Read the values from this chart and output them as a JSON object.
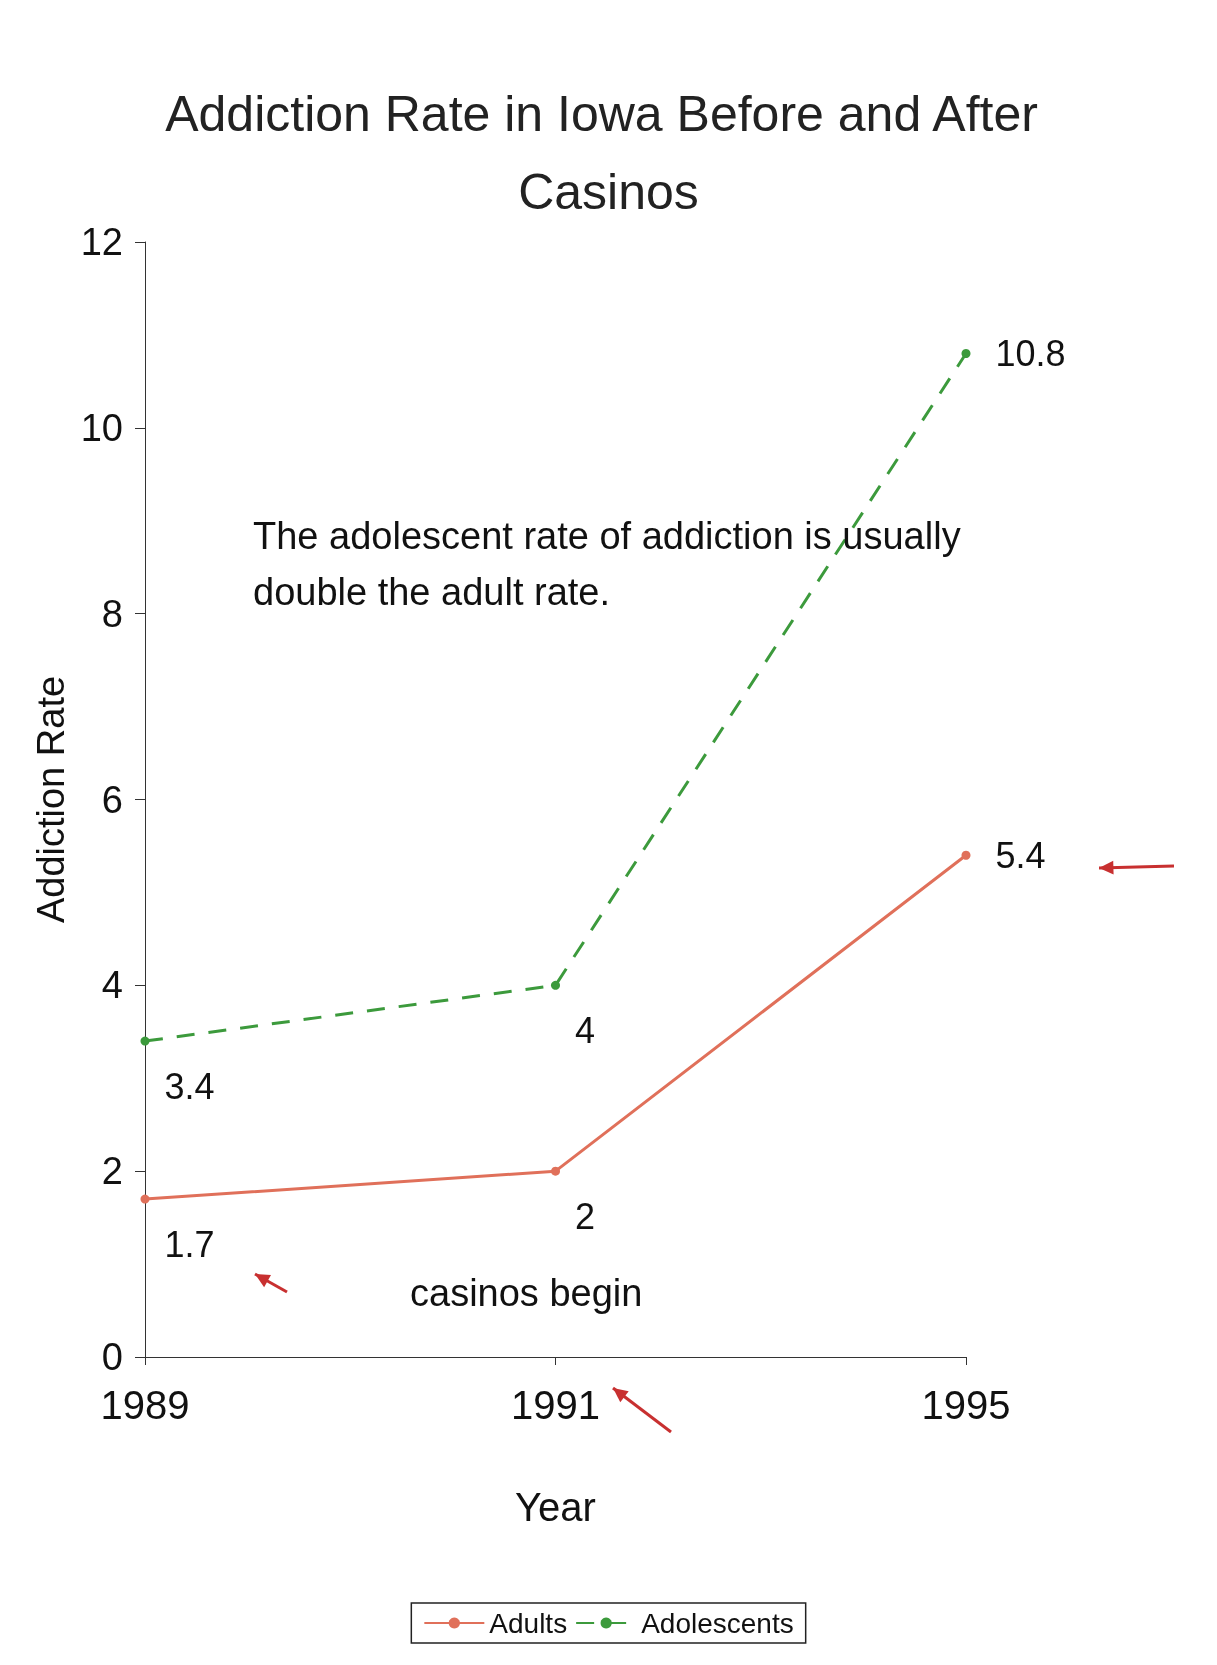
{
  "chart_data": {
    "type": "line",
    "title": "Addiction Rate in Iowa Before and After Casinos",
    "xlabel": "Year",
    "ylabel": "Addiction Rate",
    "categories": [
      "1989",
      "1991",
      "1995"
    ],
    "series": [
      {
        "name": "Adults",
        "color": "#e0705a",
        "values": [
          1.7,
          2,
          5.4
        ],
        "line_style": "solid"
      },
      {
        "name": "Adolescents",
        "color": "#3c9a3c",
        "values": [
          3.4,
          4,
          10.8
        ],
        "line_style": "dashed"
      }
    ],
    "ylim": [
      0,
      12
    ],
    "yticks": [
      0,
      2,
      4,
      6,
      8,
      10,
      12
    ],
    "grid": false,
    "legend": "bottom",
    "marker": "circle",
    "data_labels": true,
    "annotations": [
      "The adolescent rate of addiction is usually double the adult rate.",
      "casinos begin"
    ]
  }
}
